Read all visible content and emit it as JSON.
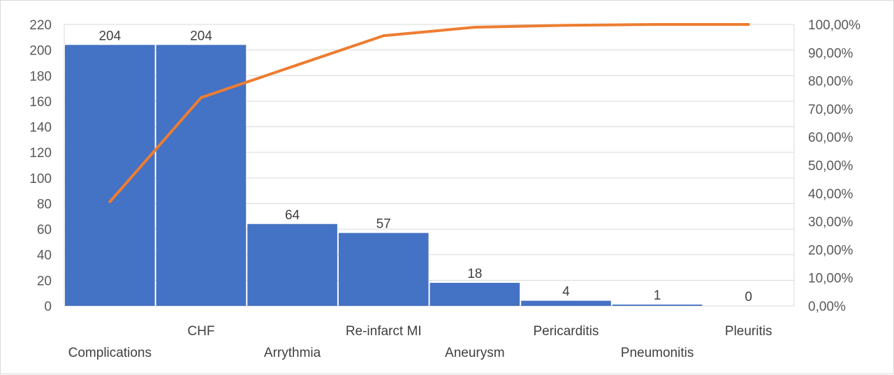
{
  "chart_data": {
    "type": "bar",
    "subtype": "pareto",
    "title": "",
    "xlabel": "",
    "ylabel": "",
    "categories": [
      "Complications",
      "CHF",
      "Arrythmia",
      "Re-infarct MI",
      "Aneurysm",
      "Pericarditis",
      "Pneumonitis",
      "Pleuritis"
    ],
    "series": [
      {
        "type": "bar",
        "axis": "left",
        "color": "#4472C4",
        "values": [
          204,
          204,
          64,
          57,
          18,
          4,
          1,
          0
        ],
        "data_labels": [
          "204",
          "204",
          "64",
          "57",
          "18",
          "4",
          "1",
          "0"
        ]
      },
      {
        "type": "line",
        "axis": "right",
        "color": "#ED7D31",
        "values": [
          0.37,
          0.74,
          0.85,
          0.96,
          0.99,
          0.997,
          1.0,
          1.0
        ]
      }
    ],
    "y_left": {
      "min": 0,
      "max": 220,
      "ticks": [
        0,
        20,
        40,
        60,
        80,
        100,
        120,
        140,
        160,
        180,
        200,
        220
      ]
    },
    "y_right": {
      "min": 0,
      "max": 1.0,
      "ticks": [
        0,
        0.1,
        0.2,
        0.3,
        0.4,
        0.5,
        0.6,
        0.7,
        0.8,
        0.9,
        1.0
      ],
      "tick_labels": [
        "0,00%",
        "10,00%",
        "20,00%",
        "30,00%",
        "40,00%",
        "50,00%",
        "60,00%",
        "70,00%",
        "80,00%",
        "90,00%",
        "100,00%"
      ]
    },
    "grid": true,
    "legend": "none",
    "gridline_color": "#d9d9d9"
  }
}
